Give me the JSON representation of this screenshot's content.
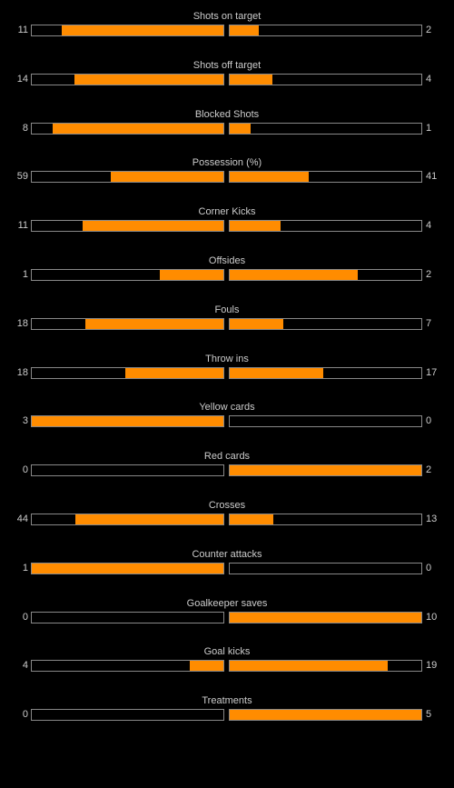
{
  "stats": [
    {
      "label": "Shots on target",
      "home": "11",
      "away": "2",
      "home_share": 0.846,
      "away_share": 0.154
    },
    {
      "label": "Shots off target",
      "home": "14",
      "away": "4",
      "home_share": 0.778,
      "away_share": 0.222
    },
    {
      "label": "Blocked Shots",
      "home": "8",
      "away": "1",
      "home_share": 0.889,
      "away_share": 0.111
    },
    {
      "label": "Possession (%)",
      "home": "59",
      "away": "41",
      "home_share": 0.59,
      "away_share": 0.41
    },
    {
      "label": "Corner Kicks",
      "home": "11",
      "away": "4",
      "home_share": 0.733,
      "away_share": 0.267
    },
    {
      "label": "Offsides",
      "home": "1",
      "away": "2",
      "home_share": 0.333,
      "away_share": 0.667
    },
    {
      "label": "Fouls",
      "home": "18",
      "away": "7",
      "home_share": 0.72,
      "away_share": 0.28
    },
    {
      "label": "Throw ins",
      "home": "18",
      "away": "17",
      "home_share": 0.514,
      "away_share": 0.486
    },
    {
      "label": "Yellow cards",
      "home": "3",
      "away": "0",
      "home_share": 1.0,
      "away_share": 0.0
    },
    {
      "label": "Red cards",
      "home": "0",
      "away": "2",
      "home_share": 0.0,
      "away_share": 1.0
    },
    {
      "label": "Crosses",
      "home": "44",
      "away": "13",
      "home_share": 0.772,
      "away_share": 0.228
    },
    {
      "label": "Counter attacks",
      "home": "1",
      "away": "0",
      "home_share": 1.0,
      "away_share": 0.0
    },
    {
      "label": "Goalkeeper saves",
      "home": "0",
      "away": "10",
      "home_share": 0.0,
      "away_share": 1.0
    },
    {
      "label": "Goal kicks",
      "home": "4",
      "away": "19",
      "home_share": 0.174,
      "away_share": 0.826
    },
    {
      "label": "Treatments",
      "home": "0",
      "away": "5",
      "home_share": 0.0,
      "away_share": 1.0
    }
  ],
  "colors": {
    "background": "#000000",
    "bar_fill": "#ff8c00",
    "bar_border": "#888888",
    "text": "#cccccc"
  }
}
